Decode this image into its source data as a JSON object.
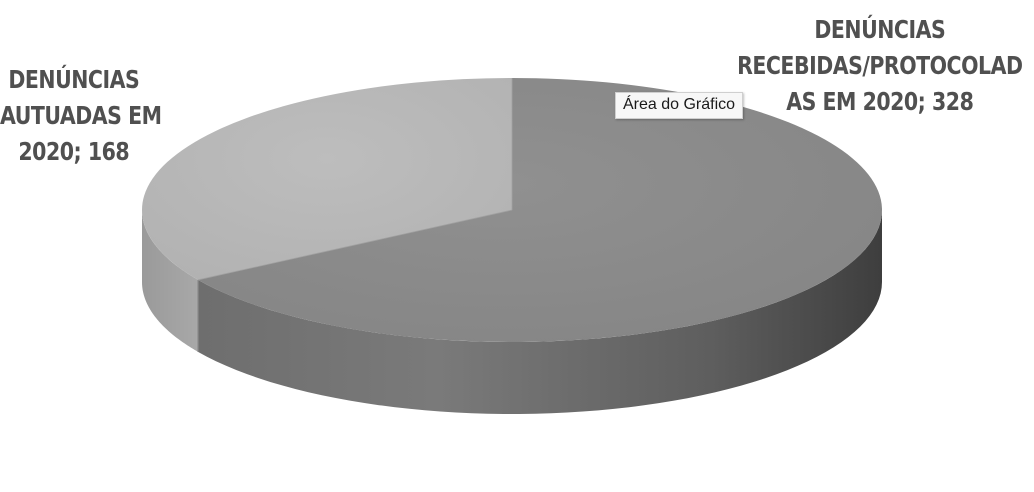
{
  "chart_data": {
    "type": "pie",
    "style": "3d",
    "slices": [
      {
        "label_lines": [
          "DENÚNCIAS",
          "RECEBIDAS/PROTOCOLAD",
          "AS EM 2020; 328"
        ],
        "value": 328,
        "color": "#8c8c8c"
      },
      {
        "label_lines": [
          "DENÚNCIAS",
          "AUTUADAS EM",
          "2020; 168"
        ],
        "value": 168,
        "color": "#b9b9b9"
      }
    ],
    "legend": "none"
  },
  "tooltip": {
    "text": "Área do Gráfico"
  }
}
